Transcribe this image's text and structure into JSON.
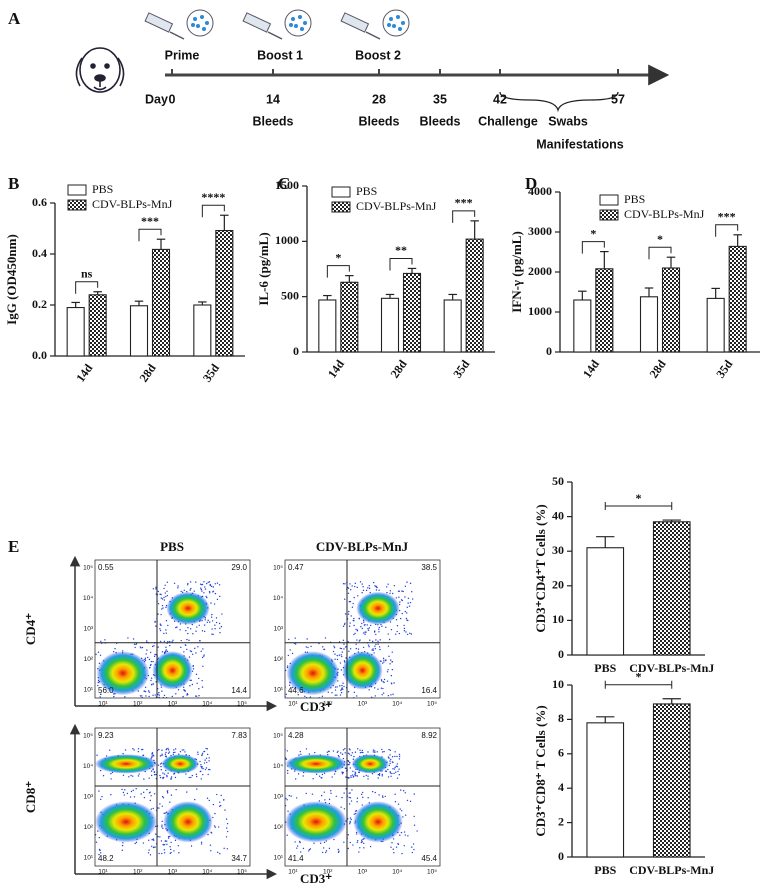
{
  "panel_labels": [
    "A",
    "B",
    "C",
    "D",
    "E"
  ],
  "timeline": {
    "events": [
      "Prime",
      "Boost 1",
      "Boost 2"
    ],
    "day_label": "Day",
    "days": [
      "0",
      "14",
      "28",
      "35",
      "42",
      "57"
    ],
    "samples": [
      "Bleeds",
      "Bleeds",
      "Bleeds",
      "Challenge",
      "Swabs"
    ],
    "manifestations": "Manifestations"
  },
  "chart_data": [
    {
      "type": "bar",
      "y_label": "IgG (OD450nm)",
      "categories": [
        "14d",
        "28d",
        "35d"
      ],
      "series": [
        {
          "name": "PBS",
          "color": "#ffffff",
          "values": [
            0.19,
            0.197,
            0.2
          ],
          "errors": [
            0.02,
            0.018,
            0.012
          ]
        },
        {
          "name": "CDV-BLPs-MnJ",
          "pattern": "checker",
          "values": [
            0.24,
            0.418,
            0.492
          ],
          "errors": [
            0.012,
            0.04,
            0.06
          ]
        }
      ],
      "ylim": [
        0,
        0.6
      ],
      "yticks": [
        {
          "value": 0,
          "label": "0.0"
        },
        0.2,
        0.4,
        0.6
      ],
      "significance": [
        "ns",
        "***",
        "****"
      ],
      "legend": true
    },
    {
      "type": "bar",
      "y_label": "IL-6 (pg/mL)",
      "categories": [
        "14d",
        "28d",
        "35d"
      ],
      "series": [
        {
          "name": "PBS",
          "color": "#ffffff",
          "values": [
            470,
            485,
            470
          ],
          "errors": [
            40,
            35,
            50
          ]
        },
        {
          "name": "CDV-BLPs-MnJ",
          "pattern": "checker",
          "values": [
            630,
            710,
            1020
          ],
          "errors": [
            60,
            45,
            165
          ]
        }
      ],
      "ylim": [
        0,
        1500
      ],
      "yticks": [
        0,
        500,
        1000,
        1500
      ],
      "significance": [
        "*",
        "**",
        "***"
      ],
      "legend": true
    },
    {
      "type": "bar",
      "y_label": "IFN-γ (pg/mL)",
      "categories": [
        "14d",
        "28d",
        "35d"
      ],
      "series": [
        {
          "name": "PBS",
          "color": "#ffffff",
          "values": [
            1300,
            1380,
            1340
          ],
          "errors": [
            220,
            220,
            250
          ]
        },
        {
          "name": "CDV-BLPs-MnJ",
          "pattern": "checker",
          "values": [
            2080,
            2100,
            2640
          ],
          "errors": [
            430,
            270,
            290
          ]
        }
      ],
      "ylim": [
        0,
        4000
      ],
      "yticks": [
        0,
        1000,
        2000,
        3000,
        4000
      ],
      "significance": [
        "*",
        "*",
        "***"
      ],
      "legend": true
    },
    {
      "type": "bar",
      "y_label": "CD3⁺CD4⁺T Cells (%)",
      "categories": [
        "PBS",
        "CDV-BLPs-MnJ"
      ],
      "values": [
        31,
        38.5
      ],
      "errors": [
        3.2,
        0.5
      ],
      "patterns": [
        "none",
        "checker"
      ],
      "ylim": [
        0,
        50
      ],
      "yticks": [
        0,
        10,
        20,
        30,
        40,
        50
      ],
      "significance": [
        "*"
      ]
    },
    {
      "type": "bar",
      "y_label": "CD3⁺CD8⁺ T Cells (%)",
      "categories": [
        "PBS",
        "CDV-BLPs-MnJ"
      ],
      "values": [
        7.8,
        8.9
      ],
      "errors": [
        0.35,
        0.3
      ],
      "patterns": [
        "none",
        "checker"
      ],
      "ylim": [
        0,
        10
      ],
      "yticks": [
        0,
        2,
        4,
        6,
        8,
        10
      ],
      "significance": [
        "*"
      ]
    }
  ],
  "flow": {
    "column_titles": [
      "PBS",
      "CDV-BLPs-MnJ"
    ],
    "axis_ticks": [
      "10¹",
      "10²",
      "10³",
      "10⁴",
      "10⁵"
    ],
    "x_label": "CD3⁺",
    "rows": [
      {
        "y_label": "CD4⁺",
        "quadrants": [
          [
            "0.55",
            "29.0",
            "56.0",
            "14.4"
          ],
          [
            "0.47",
            "38.5",
            "44.6",
            "16.4"
          ]
        ]
      },
      {
        "y_label": "CD8⁺",
        "quadrants": [
          [
            "9.23",
            "7.83",
            "48.2",
            "34.7"
          ],
          [
            "4.28",
            "8.92",
            "41.4",
            "45.4"
          ]
        ]
      }
    ]
  }
}
